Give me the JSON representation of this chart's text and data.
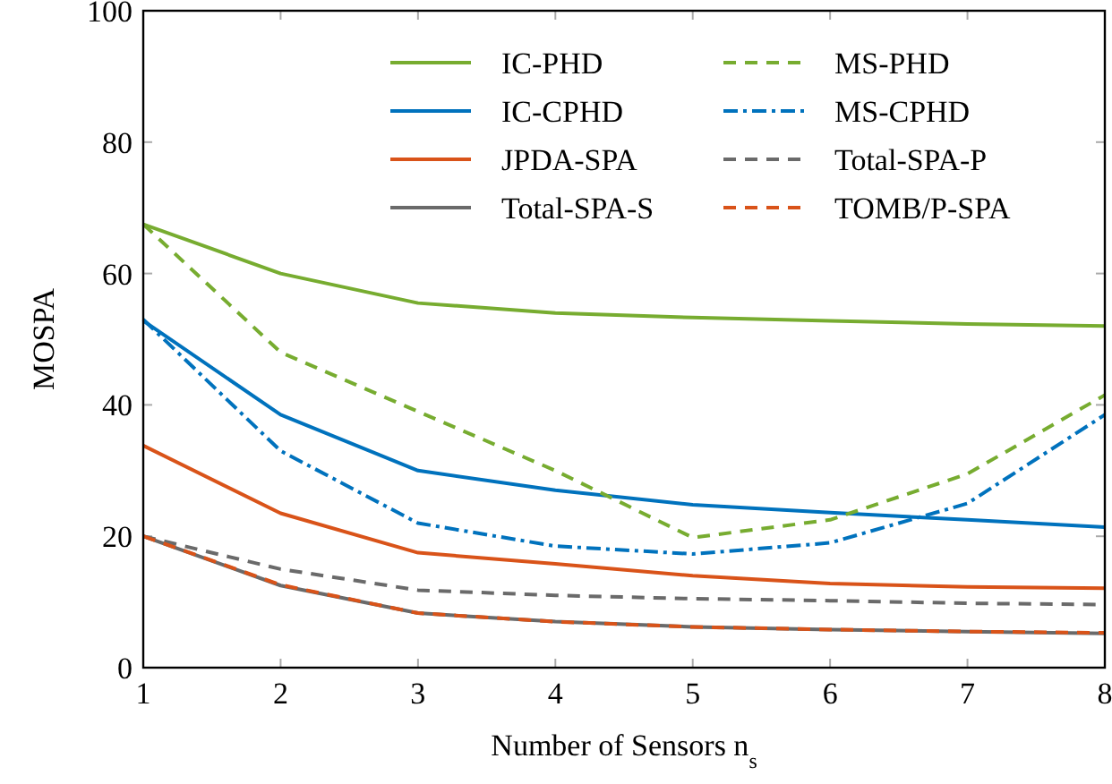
{
  "chart_data": {
    "type": "line",
    "xlabel": "Number of Sensors n$_{s}$",
    "ylabel": "MOSPA",
    "x": [
      1,
      2,
      3,
      4,
      5,
      6,
      7,
      8
    ],
    "xlim": [
      1,
      8
    ],
    "xticks": [
      1,
      2,
      3,
      4,
      5,
      6,
      7,
      8
    ],
    "ylim": [
      0,
      100
    ],
    "yticks": [
      0,
      20,
      40,
      60,
      80,
      100
    ],
    "grid": false,
    "legend": "top right",
    "marker": "none",
    "series": [
      {
        "name": "IC-PHD",
        "color": "#77ac30",
        "line_style": "solid",
        "values": [
          67.5,
          60,
          55.5,
          54,
          53.3,
          52.8,
          52.3,
          52
        ]
      },
      {
        "name": "IC-CPHD",
        "color": "#0072bd",
        "line_style": "solid",
        "values": [
          52.8,
          38.5,
          30,
          27,
          24.8,
          23.6,
          22.5,
          21.4
        ]
      },
      {
        "name": "JPDA-SPA",
        "color": "#d95319",
        "line_style": "solid",
        "values": [
          33.8,
          23.5,
          17.5,
          15.8,
          14,
          12.8,
          12.3,
          12.1
        ]
      },
      {
        "name": "Total-SPA-S",
        "color": "#6a6a6a",
        "line_style": "solid",
        "values": [
          20,
          12.5,
          8.3,
          7,
          6.2,
          5.8,
          5.5,
          5.2
        ]
      },
      {
        "name": "MS-PHD",
        "color": "#77ac30",
        "line_style": "dashed",
        "values": [
          67.5,
          48,
          39,
          30,
          19.8,
          22.5,
          29.5,
          41.5
        ]
      },
      {
        "name": "MS-CPHD",
        "color": "#0072bd",
        "line_style": "dashdot",
        "values": [
          53,
          33,
          22,
          18.5,
          17.3,
          19,
          25,
          38.5
        ]
      },
      {
        "name": "Total-SPA-P",
        "color": "#6a6a6a",
        "line_style": "dashed",
        "values": [
          20,
          15,
          11.8,
          11,
          10.5,
          10.2,
          9.8,
          9.6
        ]
      },
      {
        "name": "TOMB/P-SPA",
        "color": "#d95319",
        "line_style": "dashed",
        "values": [
          20,
          12.6,
          8.3,
          7,
          6.2,
          5.8,
          5.5,
          5.3
        ]
      }
    ]
  }
}
